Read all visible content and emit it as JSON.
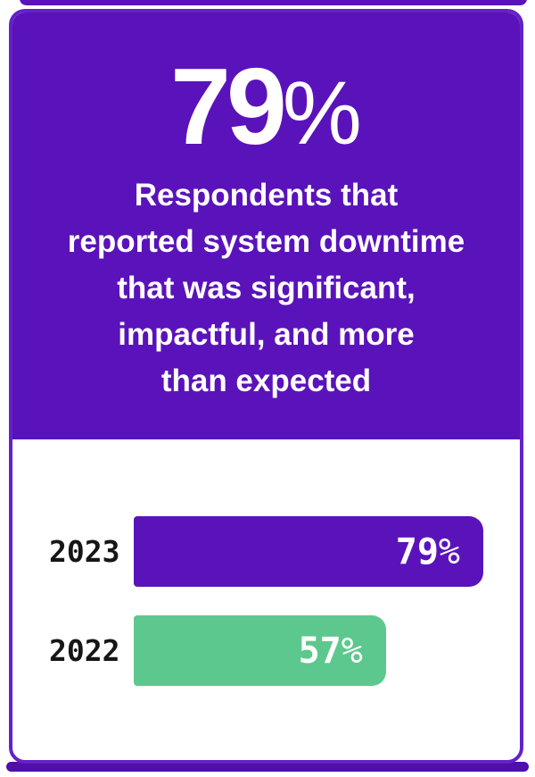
{
  "theme": {
    "purple-main": "#5A13BA",
    "purple-border": "#6322C8",
    "purple-dark": "#4F0FA8",
    "green": "#5DC88D",
    "ink": "#161616",
    "text-on-purple": "#FFFFFF"
  },
  "card": {
    "header": {
      "stat_value": "79",
      "stat_unit": "%",
      "description": "Respondents that\nreported system downtime\nthat was significant,\nimpactful, and more\nthan expected"
    }
  },
  "chart_data": {
    "type": "bar",
    "orientation": "horizontal",
    "title": "",
    "xlabel": "",
    "ylabel": "",
    "grid": false,
    "legend": "none",
    "unit": "%",
    "categories": [
      "2023",
      "2022"
    ],
    "values": [
      79,
      57
    ],
    "value_labels": [
      "79%",
      "57%"
    ],
    "scale_max": 79,
    "rows": [
      {
        "label": "2023",
        "value": 79,
        "value_text": "79",
        "unit": "%",
        "color": "#5A13BA"
      },
      {
        "label": "2022",
        "value": 57,
        "value_text": "57",
        "unit": "%",
        "color": "#5DC88D"
      }
    ]
  }
}
